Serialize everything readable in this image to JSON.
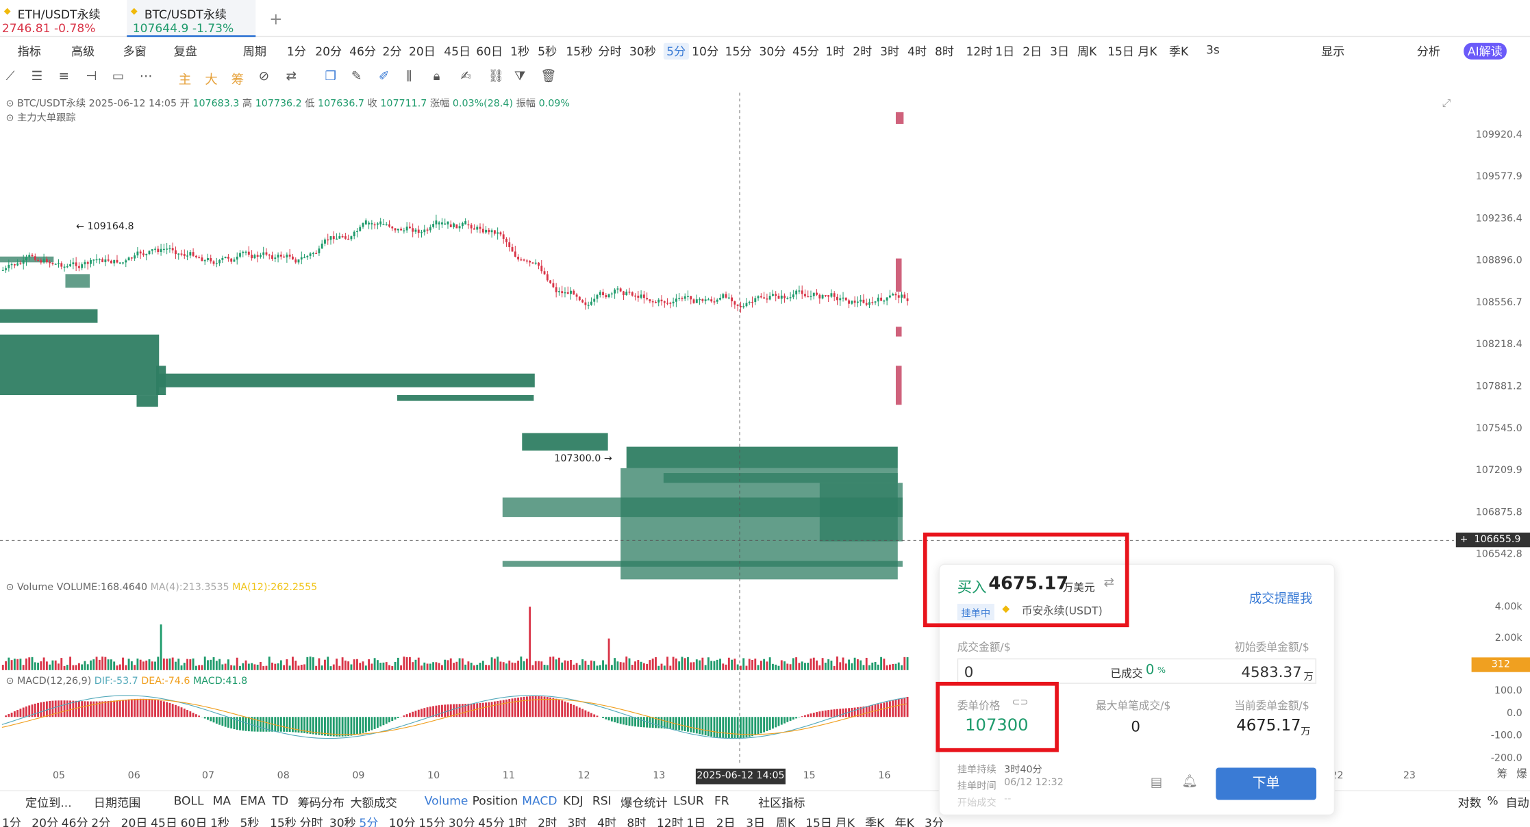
{
  "tabs": [
    {
      "name": "ETH/USDT永续",
      "price": "2746.81",
      "change": "-0.78%"
    },
    {
      "name": "BTC/USDT永续",
      "price": "107644.9",
      "change": "-1.73%"
    }
  ],
  "toolbar": {
    "items": [
      "指标",
      "高级",
      "多窗",
      "复盘",
      "周期",
      "1分",
      "20分",
      "46分",
      "2分",
      "20日",
      "45日",
      "60日",
      "1秒",
      "5秒",
      "15秒",
      "分时",
      "30秒",
      "5分",
      "10分",
      "15分",
      "30分",
      "45分",
      "1时",
      "2时",
      "3时",
      "4时",
      "8时",
      "12时",
      "1日",
      "2日",
      "3日",
      "周K",
      "15日",
      "月K",
      "季K",
      "3s",
      "显示",
      "分析",
      "AI解读"
    ],
    "selected": "5分"
  },
  "drawtools": [
    "主",
    "大",
    "筹"
  ],
  "chart": {
    "symbol_line": "BTC/USDT永续",
    "date": "2025-06-12 14:05",
    "open_label": "开",
    "open": "107683.3",
    "high_label": "高",
    "high": "107736.2",
    "low_label": "低",
    "low": "107636.7",
    "close_label": "收",
    "close": "107711.7",
    "chg_label": "涨幅",
    "chg": "0.03%(28.4)",
    "amp_label": "振幅",
    "amp": "0.09%",
    "tracker": "主力大单跟踪",
    "high_mark": "109164.8",
    "low_mark": "107300.0 →",
    "crosshair_price": "106655.9",
    "crosshair_time": "2025-06-12 14:05",
    "price_ticks": [
      "109920.4",
      "109577.9",
      "109236.4",
      "108896.0",
      "108556.7",
      "108218.4",
      "107881.2",
      "107545.0",
      "107209.9",
      "106875.8",
      "106542.8"
    ],
    "vol_ticks": [
      "4.00k",
      "2.00k"
    ],
    "vol_badge": "312",
    "macd_ticks": [
      "100.0",
      "0.0",
      "-100.0",
      "-200.0"
    ],
    "date_ticks": [
      "05",
      "06",
      "07",
      "08",
      "09",
      "10",
      "11",
      "12",
      "13",
      "15",
      "16",
      "22",
      "23"
    ],
    "volume_line": "Volume  VOLUME:168.4640",
    "vol_ma4": "MA(4):213.3535",
    "vol_ma12": "MA(12):262.2555",
    "macd_line": "MACD(12,26,9)",
    "dif": "DIF:-53.7",
    "dea": "DEA:-74.6",
    "macd": "MACD:41.8"
  },
  "panel": {
    "side": "买入",
    "amount": "4675.17",
    "unit": "万美元",
    "status": "挂单中",
    "exchange": "币安永续(USDT)",
    "alert": "成交提醒我",
    "filled_amount_label": "成交金额/$",
    "filled_amount": "0",
    "filled_pct_label": "已成交",
    "filled_pct": "0",
    "pct": "%",
    "init_label": "初始委单金额/$",
    "init_value": "4583.37",
    "wan": "万",
    "price_label": "委单价格",
    "price": "107300",
    "max_label": "最大单笔成交/$",
    "max_value": "0",
    "cur_label": "当前委单金额/$",
    "cur_value": "4675.17",
    "dur_label": "挂单持续",
    "dur": "3时40分",
    "time_label": "挂单时间",
    "time": "06/12 12:32",
    "start_label": "开始成交",
    "start": "--",
    "order_btn": "下单"
  },
  "bottom1": {
    "items": [
      "定位到...",
      "日期范围",
      "BOLL",
      "MA",
      "EMA",
      "TD",
      "筹码分布",
      "大额成交",
      "Volume",
      "Position",
      "MACD",
      "KDJ",
      "RSI",
      "爆仓统计",
      "LSUR",
      "FR",
      "社区指标"
    ],
    "right": [
      "对数",
      "%",
      "自动"
    ],
    "vert": [
      "筹",
      "爆"
    ]
  },
  "bottom2": [
    "1分",
    "20分",
    "46分",
    "2分",
    "20日",
    "45日",
    "60日",
    "1秒",
    "5秒",
    "15秒",
    "分时",
    "30秒",
    "5分",
    "10分",
    "15分",
    "30分",
    "45分",
    "1时",
    "2时",
    "3时",
    "4时",
    "8时",
    "12时",
    "1日",
    "2日",
    "3日",
    "周K",
    "15日",
    "月K",
    "季K",
    "年K",
    "3分"
  ],
  "colors": {
    "up": "#1f9b6c",
    "down": "#d93447",
    "accent": "#3a7bd5",
    "box": "#e8141c"
  }
}
